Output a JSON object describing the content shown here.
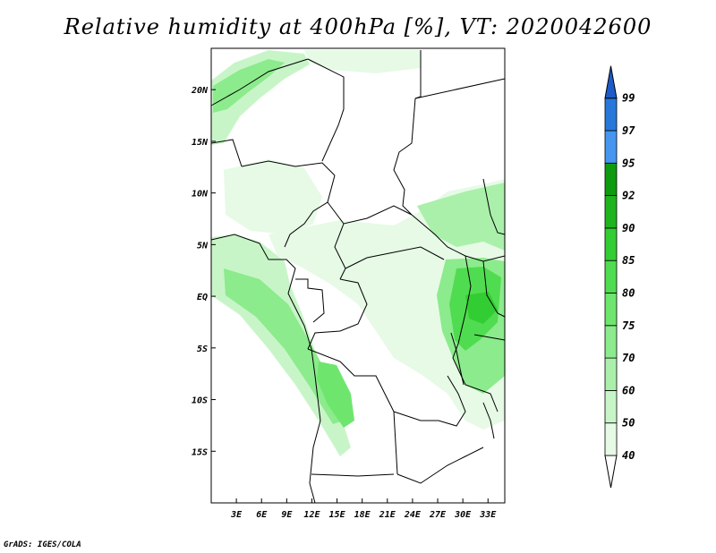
{
  "title": "Relative humidity at 400hPa [%], VT: 2020042600",
  "credit": "GrADS: IGES/COLA",
  "map": {
    "lon_range": [
      0,
      35
    ],
    "lat_range": [
      -20,
      24
    ],
    "lat_labels": [
      "20N",
      "15N",
      "10N",
      "5N",
      "EQ",
      "5S",
      "10S",
      "15S"
    ],
    "lat_values": [
      20,
      15,
      10,
      5,
      0,
      -5,
      -10,
      -15
    ],
    "lon_labels": [
      "3E",
      "6E",
      "9E",
      "12E",
      "15E",
      "18E",
      "21E",
      "24E",
      "27E",
      "30E",
      "33E"
    ],
    "lon_values": [
      3,
      6,
      9,
      12,
      15,
      18,
      21,
      24,
      27,
      30,
      33
    ]
  },
  "colorbar": {
    "levels": [
      "40",
      "50",
      "60",
      "70",
      "75",
      "80",
      "85",
      "90",
      "92",
      "95",
      "97",
      "99"
    ],
    "colors": [
      "#e6fae6",
      "#c8f5c8",
      "#aaf0aa",
      "#8ceb8c",
      "#6ee66e",
      "#50dc50",
      "#32cd32",
      "#1eb41e",
      "#0f9b0f",
      "#4696f0",
      "#2878dc",
      "#1e5ac8"
    ],
    "below_color": "#ffffff",
    "above_color": "#1e5ac8"
  }
}
